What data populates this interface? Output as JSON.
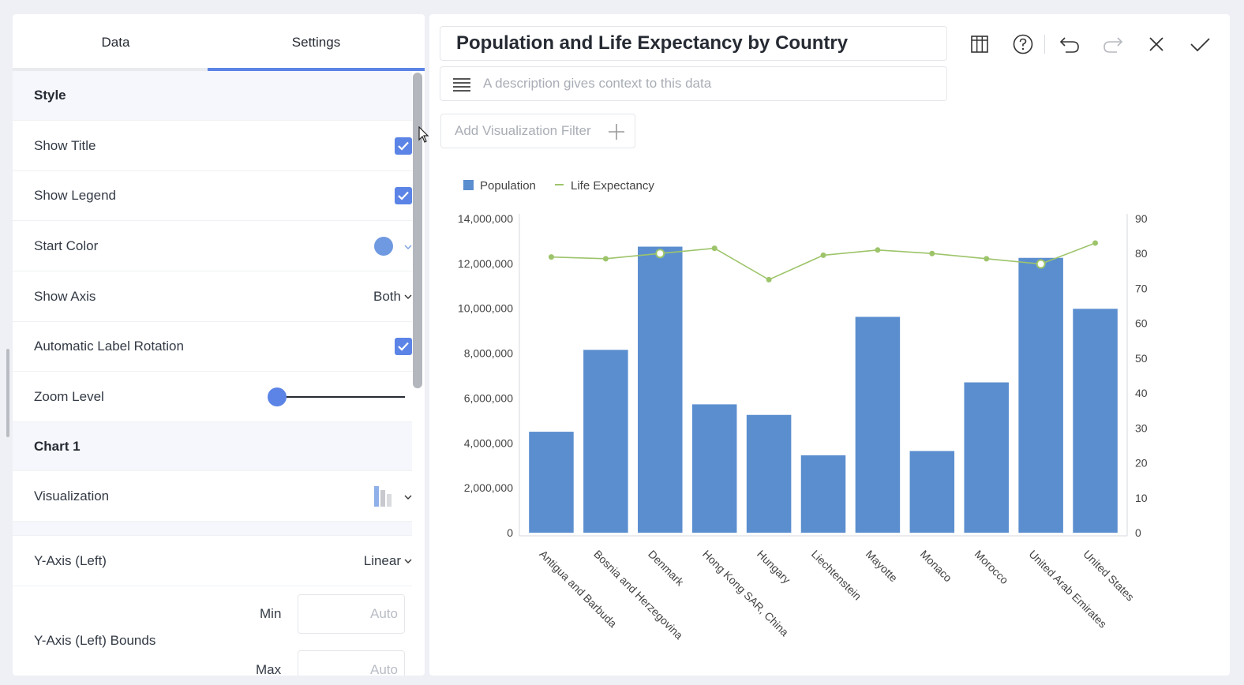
{
  "tabs": [
    {
      "label": "Data"
    },
    {
      "label": "Settings"
    }
  ],
  "settings": {
    "style_section": "Style",
    "show_title_label": "Show Title",
    "show_title_checked": true,
    "show_legend_label": "Show Legend",
    "show_legend_checked": true,
    "start_color_label": "Start Color",
    "start_color_value": "#6f99e0",
    "show_axis_label": "Show Axis",
    "show_axis_value": "Both",
    "auto_rotation_label": "Automatic Label Rotation",
    "auto_rotation_checked": true,
    "zoom_label": "Zoom Level",
    "zoom_value": 0,
    "chart1_section": "Chart 1",
    "visualization_label": "Visualization",
    "visualization_icon": "column-chart-icon",
    "yaxis_left_label": "Y-Axis (Left)",
    "yaxis_left_value": "Linear",
    "bounds_label": "Y-Axis (Left) Bounds",
    "min_label": "Min",
    "min_placeholder": "Auto",
    "max_label": "Max",
    "max_placeholder": "Auto"
  },
  "header": {
    "title": "Population and Life Expectancy by Country",
    "description_placeholder": "A description gives context to this data",
    "filter_label": "Add Visualization Filter"
  },
  "toolbar": {
    "icons": [
      "table-view-icon",
      "help-icon",
      "undo-icon",
      "redo-icon",
      "close-icon",
      "check-icon"
    ]
  },
  "colors": {
    "accent": "#5b84e6",
    "bar": "#5b8ecf",
    "line": "#9dc46a"
  },
  "chart_data": {
    "type": "bar",
    "categories": [
      "Antigua and Barbuda",
      "Bosnia and Herzegovina",
      "Denmark",
      "Hong Kong SAR, China",
      "Hungary",
      "Liechtenstein",
      "Mayotte",
      "Monaco",
      "Morocco",
      "United Arab Emirates",
      "United States"
    ],
    "series": [
      {
        "name": "Population",
        "type": "bar",
        "axis": "left",
        "values": [
          4500000,
          8150000,
          12750000,
          5720000,
          5250000,
          3450000,
          9620000,
          3640000,
          6700000,
          12250000,
          9980000
        ]
      },
      {
        "name": "Life Expectancy",
        "type": "line",
        "axis": "right",
        "values": [
          79,
          78.5,
          80,
          81.5,
          72.5,
          79.5,
          81,
          80,
          78.5,
          77,
          83
        ]
      }
    ],
    "legend_position": "top-left",
    "yleft_ticks": [
      "0",
      "2,000,000",
      "4,000,000",
      "6,000,000",
      "8,000,000",
      "10,000,000",
      "12,000,000",
      "14,000,000"
    ],
    "yleft_lim": [
      0,
      14000000
    ],
    "yright_ticks": [
      "0",
      "10",
      "20",
      "30",
      "40",
      "50",
      "60",
      "70",
      "80",
      "90"
    ],
    "yright_lim": [
      0,
      90
    ],
    "highlighted_points": [
      2,
      9
    ],
    "grid": false
  }
}
